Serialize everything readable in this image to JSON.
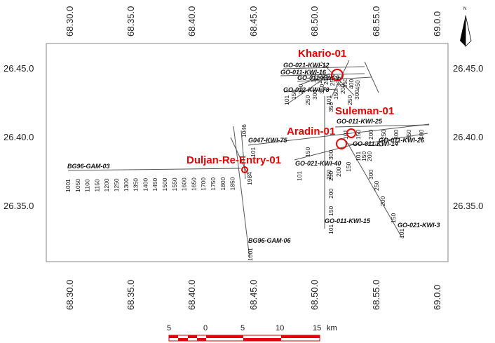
{
  "map": {
    "frame_color": "#999999",
    "line_color": "#555555",
    "well_color": "#e60000"
  },
  "axes": {
    "lon_ticks": [
      "68.30.0",
      "68.35.0",
      "68.40.0",
      "68.45.0",
      "68.50.0",
      "68.55.0",
      "69.0.0"
    ],
    "lat_ticks": [
      "26.45.0",
      "26.40.0",
      "26.35.0"
    ]
  },
  "north_arrow": {
    "label": "N",
    "icon": "north-arrow-icon"
  },
  "scale_bar": {
    "labels": [
      "5",
      "0",
      "5",
      "10",
      "15"
    ],
    "unit": "km"
  },
  "wells": [
    {
      "name": "Khario-01"
    },
    {
      "name": "Suleman-01"
    },
    {
      "name": "Aradin-01"
    },
    {
      "name": "Duljan-Re-Entry-01"
    }
  ],
  "seismic_lines": [
    {
      "name": "BG96-GAM-03",
      "shotpoints": [
        "1001",
        "1050",
        "1100",
        "1150",
        "1200",
        "1250",
        "1300",
        "1350",
        "1400",
        "1450",
        "1500",
        "1550",
        "1600",
        "1650",
        "1700",
        "1750",
        "1800",
        "1850"
      ]
    },
    {
      "name": "BG96-GAM-06",
      "shotpoints": [
        "1001",
        "1046",
        "1984"
      ]
    },
    {
      "name": "G047-KWI-75",
      "shotpoints": [
        "101",
        "150"
      ]
    },
    {
      "name": "GO-021-KWI-40",
      "shotpoints": [
        "101",
        "250",
        "200",
        "150"
      ]
    },
    {
      "name": "GO-011-KWI-15",
      "shotpoints": [
        "101",
        "150",
        "200",
        "250",
        "300",
        "350"
      ]
    },
    {
      "name": "GO-021-KWI-3",
      "shotpoints": [
        "150",
        "200",
        "250",
        "300",
        "101"
      ]
    },
    {
      "name": "GO-011-KWI-25",
      "shotpoints": [
        "101",
        "150",
        "200",
        "250",
        "300",
        "350",
        "400"
      ]
    },
    {
      "name": "GO-011-KWI-14",
      "shotpoints": [
        "101",
        "150",
        "200"
      ]
    },
    {
      "name": "GO-011-KWI-26",
      "shotpoints": [
        "101",
        "150",
        "200",
        "250",
        "300"
      ]
    },
    {
      "name": "GO-021-KWI-12",
      "shotpoints": [
        "101",
        "150",
        "200",
        "250",
        "300",
        "350",
        "400",
        "450"
      ]
    },
    {
      "name": "GO-011-KWI-16",
      "shotpoints": [
        "101",
        "150",
        "200",
        "250",
        "300",
        "350",
        "400"
      ]
    },
    {
      "name": "GO-011-KWI-9",
      "shotpoints": [
        "101",
        "150",
        "200",
        "250",
        "300"
      ]
    },
    {
      "name": "GO-012-KWI-78",
      "shotpoints": [
        "101",
        "150",
        "200",
        "250",
        "300",
        "350"
      ]
    }
  ]
}
